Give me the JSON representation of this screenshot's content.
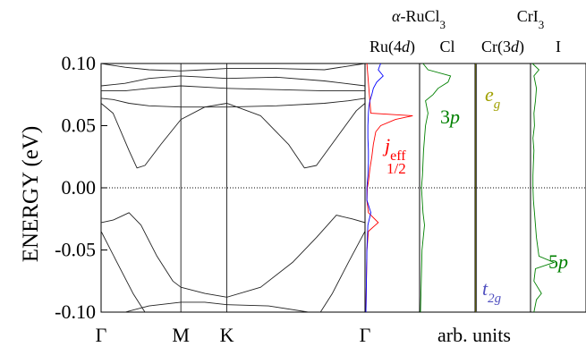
{
  "chart_data": {
    "type": "line",
    "ylabel": "ENERGY (eV)",
    "ylim": [
      -0.1,
      0.1
    ],
    "yticks": [
      "0.10",
      "0.05",
      "0.00",
      "-0.05",
      "-0.10"
    ],
    "band_structure": {
      "k_labels": [
        "Γ",
        "M",
        "K",
        "Γ"
      ],
      "k_positions": [
        0,
        1,
        1.577,
        3.309
      ],
      "fermi_level": 0.0,
      "bands": [
        {
          "name": "",
          "points": [
            [
              0,
              0.1
            ],
            [
              0.3,
              0.097
            ],
            [
              0.6,
              0.095
            ],
            [
              1.0,
              0.094
            ],
            [
              1.3,
              0.095
            ],
            [
              1.577,
              0.096
            ],
            [
              2.2,
              0.096
            ],
            [
              2.8,
              0.095
            ],
            [
              3.309,
              0.1
            ]
          ]
        },
        {
          "name": "",
          "points": [
            [
              0,
              0.082
            ],
            [
              0.3,
              0.084
            ],
            [
              0.6,
              0.088
            ],
            [
              1.0,
              0.09
            ],
            [
              1.3,
              0.089
            ],
            [
              1.577,
              0.088
            ],
            [
              2.2,
              0.089
            ],
            [
              2.8,
              0.086
            ],
            [
              3.309,
              0.082
            ]
          ]
        },
        {
          "name": "",
          "points": [
            [
              0,
              0.078
            ],
            [
              0.3,
              0.078
            ],
            [
              0.6,
              0.08
            ],
            [
              1.0,
              0.082
            ],
            [
              1.3,
              0.081
            ],
            [
              1.577,
              0.08
            ],
            [
              2.2,
              0.079
            ],
            [
              2.8,
              0.078
            ],
            [
              3.309,
              0.078
            ]
          ]
        },
        {
          "name": "",
          "points": [
            [
              0,
              0.072
            ],
            [
              0.15,
              0.071
            ],
            [
              0.35,
              0.068
            ],
            [
              0.6,
              0.066
            ],
            [
              1.0,
              0.065
            ],
            [
              1.3,
              0.065
            ],
            [
              1.577,
              0.065
            ],
            [
              2.2,
              0.066
            ],
            [
              2.8,
              0.068
            ],
            [
              3.1,
              0.07
            ],
            [
              3.309,
              0.072
            ]
          ]
        },
        {
          "name": "",
          "points": [
            [
              0,
              0.068
            ],
            [
              0.15,
              0.06
            ],
            [
              0.35,
              0.03
            ],
            [
              0.45,
              0.016
            ],
            [
              0.55,
              0.018
            ],
            [
              0.75,
              0.035
            ],
            [
              1.0,
              0.055
            ],
            [
              1.3,
              0.065
            ],
            [
              1.577,
              0.068
            ],
            [
              2.0,
              0.058
            ],
            [
              2.35,
              0.035
            ],
            [
              2.55,
              0.016
            ],
            [
              2.7,
              0.018
            ],
            [
              2.95,
              0.04
            ],
            [
              3.2,
              0.062
            ],
            [
              3.309,
              0.068
            ]
          ]
        },
        {
          "name": "",
          "points": [
            [
              0,
              -0.028
            ],
            [
              0.15,
              -0.026
            ],
            [
              0.35,
              -0.02
            ],
            [
              0.5,
              -0.03
            ],
            [
              0.7,
              -0.055
            ],
            [
              0.9,
              -0.075
            ],
            [
              1.0,
              -0.08
            ],
            [
              1.3,
              -0.085
            ],
            [
              1.577,
              -0.088
            ],
            [
              2.0,
              -0.08
            ],
            [
              2.4,
              -0.06
            ],
            [
              2.7,
              -0.04
            ],
            [
              2.95,
              -0.022
            ],
            [
              3.15,
              -0.025
            ],
            [
              3.309,
              -0.028
            ]
          ]
        },
        {
          "name": "",
          "points": [
            [
              0,
              -0.035
            ],
            [
              0.2,
              -0.06
            ],
            [
              0.4,
              -0.085
            ],
            [
              0.55,
              -0.1
            ]
          ]
        },
        {
          "name": "",
          "points": [
            [
              3.309,
              -0.035
            ],
            [
              3.1,
              -0.06
            ],
            [
              2.9,
              -0.085
            ],
            [
              2.75,
              -0.1
            ]
          ]
        },
        {
          "name": "",
          "points": [
            [
              0.3,
              -0.1
            ],
            [
              0.6,
              -0.095
            ],
            [
              1.0,
              -0.092
            ],
            [
              1.3,
              -0.092
            ],
            [
              1.577,
              -0.094
            ],
            [
              2.1,
              -0.095
            ],
            [
              2.6,
              -0.1
            ]
          ]
        }
      ]
    },
    "dos_panels": [
      {
        "label": "Ru(4d)",
        "label_main": "Ru(4",
        "label_italic": "d",
        "label_tail": ")",
        "series": [
          {
            "color": "#ff0000",
            "points": [
              [
                0.1,
                0.02
              ],
              [
                0.06,
                0.1
              ],
              [
                0.058,
                0.95
              ],
              [
                0.055,
                0.6
              ],
              [
                0.05,
                0.3
              ],
              [
                0.045,
                0.2
              ],
              [
                0.035,
                0.15
              ],
              [
                0.025,
                0.12
              ],
              [
                0.015,
                0.08
              ],
              [
                0.005,
                0.05
              ],
              [
                0.0,
                0.03
              ],
              [
                -0.01,
                0.02
              ],
              [
                -0.02,
                0.05
              ],
              [
                -0.028,
                0.25
              ],
              [
                -0.035,
                0.05
              ],
              [
                -0.05,
                0.02
              ],
              [
                -0.1,
                0.0
              ]
            ]
          },
          {
            "color": "#0000ff",
            "points": [
              [
                0.1,
                0.3
              ],
              [
                0.095,
                0.25
              ],
              [
                0.09,
                0.35
              ],
              [
                0.085,
                0.22
              ],
              [
                0.08,
                0.15
              ],
              [
                0.075,
                0.12
              ],
              [
                0.07,
                0.08
              ],
              [
                0.065,
                0.06
              ],
              [
                0.06,
                0.05
              ],
              [
                0.05,
                0.04
              ],
              [
                0.04,
                0.04
              ],
              [
                0.03,
                0.05
              ],
              [
                0.02,
                0.05
              ],
              [
                0.01,
                0.04
              ],
              [
                0.0,
                0.02
              ],
              [
                -0.01,
                0.02
              ],
              [
                -0.02,
                0.1
              ],
              [
                -0.03,
                0.04
              ],
              [
                -0.05,
                0.02
              ],
              [
                -0.1,
                0.0
              ]
            ]
          }
        ]
      },
      {
        "label": "Cl",
        "series": [
          {
            "color": "#008000",
            "points": [
              [
                0.1,
                0.05
              ],
              [
                0.095,
                0.15
              ],
              [
                0.09,
                0.6
              ],
              [
                0.085,
                0.55
              ],
              [
                0.08,
                0.35
              ],
              [
                0.075,
                0.25
              ],
              [
                0.07,
                0.1
              ],
              [
                0.06,
                0.15
              ],
              [
                0.05,
                0.1
              ],
              [
                0.04,
                0.08
              ],
              [
                0.03,
                0.06
              ],
              [
                0.02,
                0.05
              ],
              [
                0.01,
                0.04
              ],
              [
                0.0,
                0.02
              ],
              [
                -0.02,
                0.05
              ],
              [
                -0.03,
                0.08
              ],
              [
                -0.05,
                0.03
              ],
              [
                -0.1,
                0.0
              ]
            ]
          }
        ]
      },
      {
        "label": "Cr(3d)",
        "label_main": "Cr(3",
        "label_italic": "d",
        "label_tail": ")",
        "series": [
          {
            "color": "#000080",
            "points": [
              [
                0.1,
                0.01
              ],
              [
                -0.1,
                0.01
              ]
            ]
          },
          {
            "color": "#a0a000",
            "points": [
              [
                0.1,
                0.0
              ],
              [
                -0.1,
                0.0
              ]
            ]
          }
        ]
      },
      {
        "label": "I",
        "series": [
          {
            "color": "#008000",
            "points": [
              [
                0.1,
                0.02
              ],
              [
                0.095,
                0.15
              ],
              [
                0.09,
                0.05
              ],
              [
                0.08,
                0.1
              ],
              [
                0.07,
                0.08
              ],
              [
                0.06,
                0.05
              ],
              [
                0.05,
                0.06
              ],
              [
                0.04,
                0.03
              ],
              [
                0.03,
                0.05
              ],
              [
                0.02,
                0.04
              ],
              [
                0.01,
                0.03
              ],
              [
                0.0,
                0.03
              ],
              [
                -0.01,
                0.04
              ],
              [
                -0.02,
                0.06
              ],
              [
                -0.04,
                0.1
              ],
              [
                -0.055,
                0.15
              ],
              [
                -0.06,
                0.45
              ],
              [
                -0.065,
                0.08
              ],
              [
                -0.075,
                0.05
              ],
              [
                -0.085,
                0.2
              ],
              [
                -0.09,
                0.1
              ],
              [
                -0.1,
                0.05
              ]
            ]
          }
        ]
      }
    ],
    "group_labels": [
      {
        "main": "α",
        "sep": "-RuCl",
        "sub": "3"
      },
      {
        "main": "CrI",
        "sub": "3"
      }
    ],
    "annotations": [
      {
        "id": "jeff",
        "main": "j",
        "sub": "eff",
        "line2": "1/2",
        "color": "#ff0000"
      },
      {
        "id": "3p",
        "num": "3",
        "italic": "p",
        "color": "#008000"
      },
      {
        "id": "eg",
        "main": "e",
        "sub": "g",
        "color": "#a0a000"
      },
      {
        "id": "t2g",
        "main": "t",
        "sub": "2g",
        "color": "#5050c0"
      },
      {
        "id": "5p",
        "num": "5",
        "italic": "p",
        "color": "#008000"
      }
    ],
    "xlabel_dos": "arb. units",
    "grid": false
  }
}
